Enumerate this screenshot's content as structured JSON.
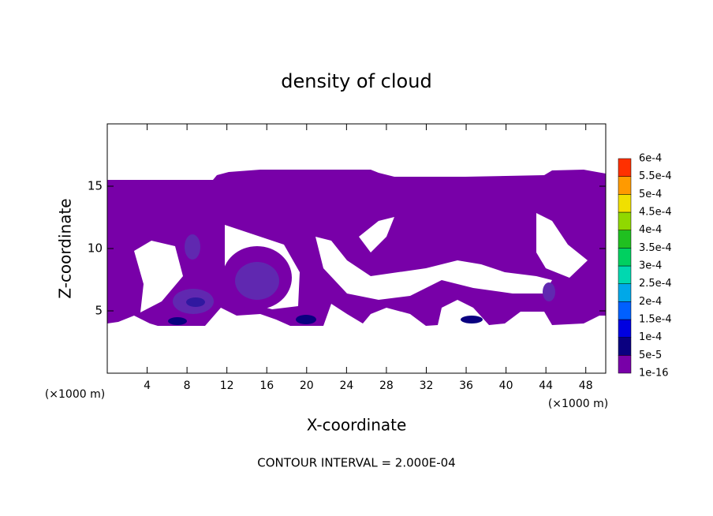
{
  "chart_data": {
    "type": "contour",
    "title": "density of cloud",
    "x_label": "X-coordinate",
    "y_label": "Z-coordinate",
    "x_unit_label": "(×1000 m)",
    "y_unit_label": "(×1000 m)",
    "footnote": "CONTOUR INTERVAL = 2.000E-04",
    "xlim": [
      0,
      50
    ],
    "xticks": [
      4,
      8,
      12,
      16,
      20,
      24,
      28,
      32,
      36,
      40,
      44,
      48
    ],
    "ylim": [
      0,
      20
    ],
    "yticks": [
      5,
      10,
      15
    ],
    "colorbar": {
      "levels": [
        {
          "value": 1e-16,
          "label": "1e-16"
        },
        {
          "value": 5e-05,
          "label": "5e-5"
        },
        {
          "value": 0.0001,
          "label": "1e-4"
        },
        {
          "value": 0.00015,
          "label": "1.5e-4"
        },
        {
          "value": 0.0002,
          "label": "2e-4"
        },
        {
          "value": 0.00025,
          "label": "2.5e-4"
        },
        {
          "value": 0.0003,
          "label": "3e-4"
        },
        {
          "value": 0.00035,
          "label": "3.5e-4"
        },
        {
          "value": 0.0004,
          "label": "4e-4"
        },
        {
          "value": 0.00045,
          "label": "4.5e-4"
        },
        {
          "value": 0.0005,
          "label": "5e-4"
        },
        {
          "value": 0.00055,
          "label": "5.5e-4"
        },
        {
          "value": 0.0006,
          "label": "6e-4"
        }
      ],
      "colors": [
        "#7800a8",
        "#0a0080",
        "#0000e0",
        "#0060ff",
        "#00a8e8",
        "#00d8b0",
        "#00d060",
        "#20c020",
        "#90d800",
        "#f0e000",
        "#ff9a00",
        "#ff3000",
        "#f08080"
      ]
    }
  }
}
